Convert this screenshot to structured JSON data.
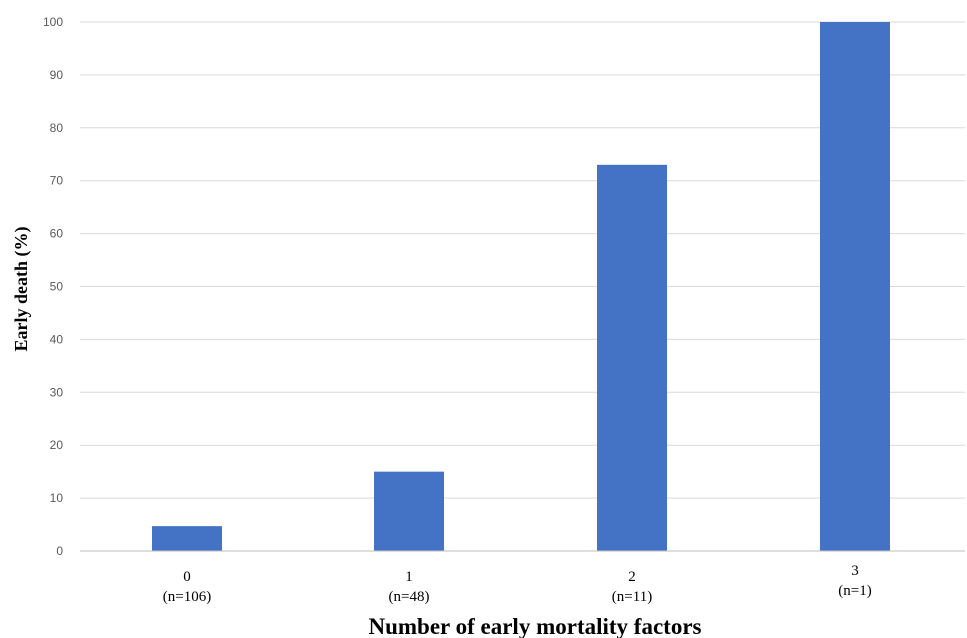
{
  "chart_data": {
    "type": "bar",
    "categories": [
      "0",
      "1",
      "2",
      "3"
    ],
    "category_counts": [
      "(n=106)",
      "(n=48)",
      "(n=11)",
      "(n=1)"
    ],
    "values": [
      4.7,
      15,
      73,
      100
    ],
    "xlabel": "Number of early mortality factors",
    "ylabel": "Early death (%)",
    "ylim": [
      0,
      100
    ],
    "yticks": [
      0,
      10,
      20,
      30,
      40,
      50,
      60,
      70,
      80,
      90,
      100
    ],
    "grid": true,
    "bar_color": "#4472c4"
  }
}
